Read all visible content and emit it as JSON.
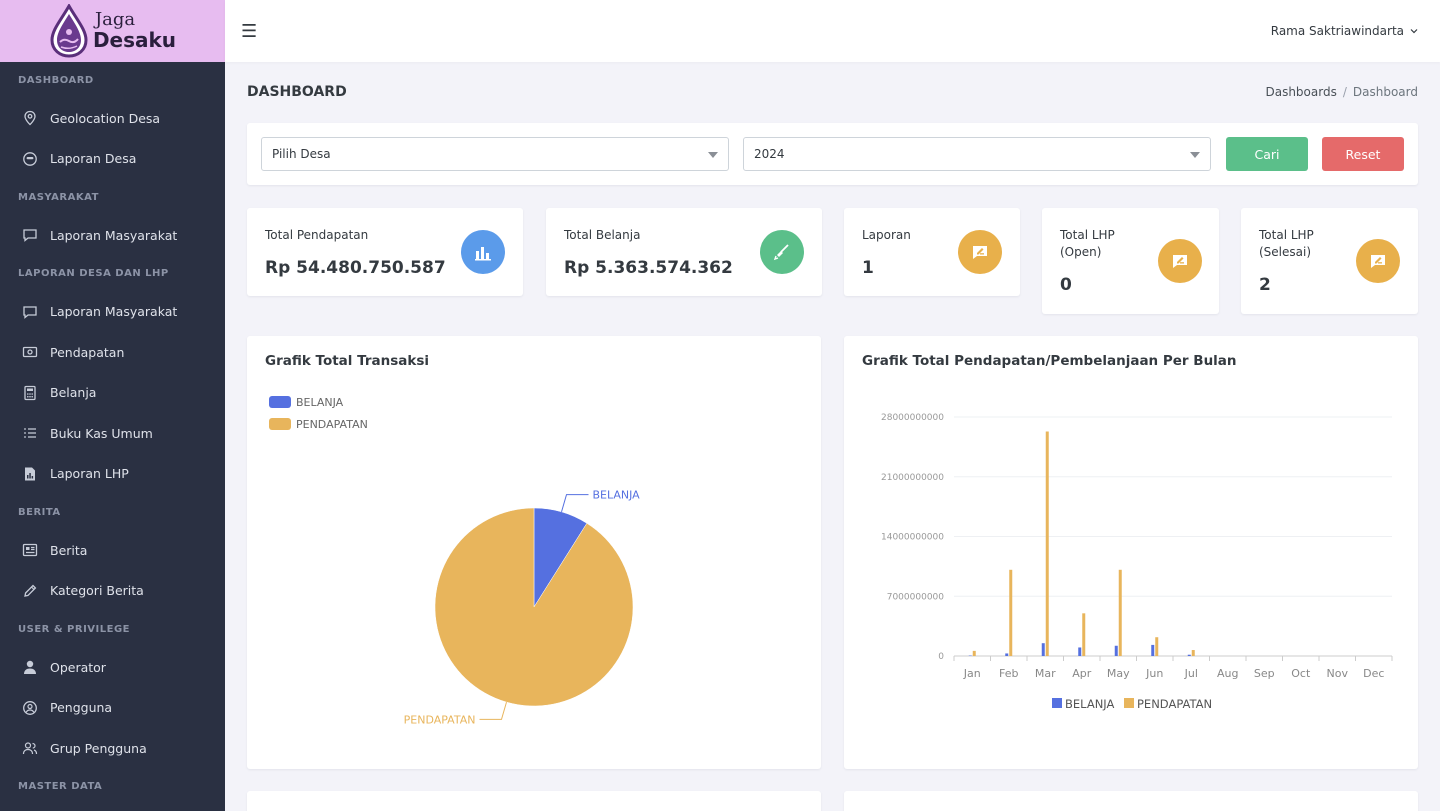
{
  "app": {
    "logo_line1": "Jaga",
    "logo_line2": "Desaku"
  },
  "sidebar": {
    "sections": [
      {
        "title": "DASHBOARD",
        "items": [
          {
            "label": "Geolocation Desa",
            "icon": "location-pin-icon"
          },
          {
            "label": "Laporan Desa",
            "icon": "face-icon"
          }
        ]
      },
      {
        "title": "MASYARAKAT",
        "items": [
          {
            "label": "Laporan Masyarakat",
            "icon": "chat-icon"
          }
        ]
      },
      {
        "title": "LAPORAN DESA DAN LHP",
        "items": [
          {
            "label": "Laporan Masyarakat",
            "icon": "chat-icon"
          },
          {
            "label": "Pendapatan",
            "icon": "money-icon"
          },
          {
            "label": "Belanja",
            "icon": "calculator-icon"
          },
          {
            "label": "Buku Kas Umum",
            "icon": "list-icon"
          },
          {
            "label": "Laporan LHP",
            "icon": "file-chart-icon"
          }
        ]
      },
      {
        "title": "BERITA",
        "items": [
          {
            "label": "Berita",
            "icon": "news-icon"
          },
          {
            "label": "Kategori Berita",
            "icon": "pencil-icon"
          }
        ]
      },
      {
        "title": "USER & PRIVILEGE",
        "items": [
          {
            "label": "Operator",
            "icon": "user-icon"
          },
          {
            "label": "Pengguna",
            "icon": "user-circle-icon"
          },
          {
            "label": "Grup Pengguna",
            "icon": "users-icon"
          }
        ]
      },
      {
        "title": "MASTER DATA",
        "items": []
      }
    ]
  },
  "topbar": {
    "user_name": "Rama Saktriawindarta"
  },
  "page": {
    "title": "DASHBOARD",
    "breadcrumb": [
      "Dashboards",
      "Dashboard"
    ]
  },
  "filter": {
    "desa_value": "Pilih Desa",
    "year_value": "2024",
    "search_label": "Cari",
    "reset_label": "Reset"
  },
  "stats": [
    {
      "label": "Total Pendapatan",
      "value": "Rp 54.480.750.587",
      "icon": "bar-chart-icon",
      "color": "#5b9bea"
    },
    {
      "label": "Total Belanja",
      "value": "Rp 5.363.574.362",
      "icon": "broom-icon",
      "color": "#5bbf8a"
    },
    {
      "label": "Laporan",
      "value": "1",
      "icon": "report-icon",
      "color": "#e8b04b"
    },
    {
      "label": "Total LHP (Open)",
      "value": "0",
      "icon": "report-icon",
      "color": "#e8b04b"
    },
    {
      "label": "Total LHP (Selesai)",
      "value": "2",
      "icon": "report-icon",
      "color": "#e8b04b"
    }
  ],
  "charts": {
    "pie_title": "Grafik Total Transaksi",
    "bar_title": "Grafik Total Pendapatan/Pembelanjaan Per Bulan"
  },
  "colors": {
    "belanja": "#5570e0",
    "pendapatan": "#e8b55c"
  },
  "chart_data": [
    {
      "type": "pie",
      "title": "Grafik Total Transaksi",
      "categories": [
        "BELANJA",
        "PENDAPATAN"
      ],
      "values": [
        5363574362,
        54480750587
      ],
      "legend": "top-left"
    },
    {
      "type": "bar",
      "title": "Grafik Total Pendapatan/Pembelanjaan Per Bulan",
      "categories": [
        "Jan",
        "Feb",
        "Mar",
        "Apr",
        "May",
        "Jun",
        "Jul",
        "Aug",
        "Sep",
        "Oct",
        "Nov",
        "Dec"
      ],
      "series": [
        {
          "name": "BELANJA",
          "values": [
            50000000,
            300000000,
            1500000000,
            1000000000,
            1200000000,
            1300000000,
            150000000,
            0,
            0,
            0,
            0,
            0
          ]
        },
        {
          "name": "PENDAPATAN",
          "values": [
            600000000,
            10100000000,
            26300000000,
            5000000000,
            10100000000,
            2200000000,
            700000000,
            0,
            0,
            0,
            0,
            0
          ]
        }
      ],
      "yticks": [
        0,
        7000000000,
        14000000000,
        21000000000,
        28000000000
      ],
      "ylim": [
        0,
        28000000000
      ],
      "legend": "bottom"
    }
  ]
}
